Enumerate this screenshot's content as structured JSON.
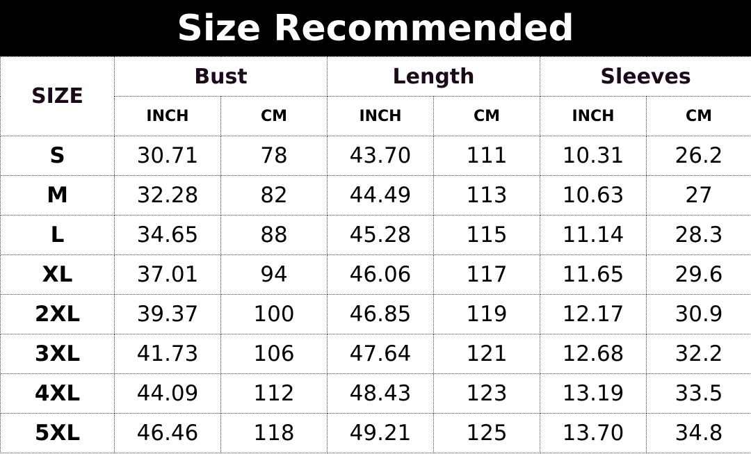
{
  "title": "Size Recommended",
  "headers": {
    "size": "SIZE",
    "groups": [
      "Bust",
      "Length",
      "Sleeves"
    ],
    "units": [
      "INCH",
      "CM",
      "INCH",
      "CM",
      "INCH",
      "CM"
    ]
  },
  "rows": [
    [
      "S",
      "30.71",
      "78",
      "43.70",
      "111",
      "10.31",
      "26.2"
    ],
    [
      "M",
      "32.28",
      "82",
      "44.49",
      "113",
      "10.63",
      "27"
    ],
    [
      "L",
      "34.65",
      "88",
      "45.28",
      "115",
      "11.14",
      "28.3"
    ],
    [
      "XL",
      "37.01",
      "94",
      "46.06",
      "117",
      "11.65",
      "29.6"
    ],
    [
      "2XL",
      "39.37",
      "100",
      "46.85",
      "119",
      "12.17",
      "30.9"
    ],
    [
      "3XL",
      "41.73",
      "106",
      "47.64",
      "121",
      "12.68",
      "32.2"
    ],
    [
      "4XL",
      "44.09",
      "112",
      "48.43",
      "123",
      "13.19",
      "33.5"
    ],
    [
      "5XL",
      "46.46",
      "118",
      "49.21",
      "125",
      "13.70",
      "34.8"
    ]
  ]
}
